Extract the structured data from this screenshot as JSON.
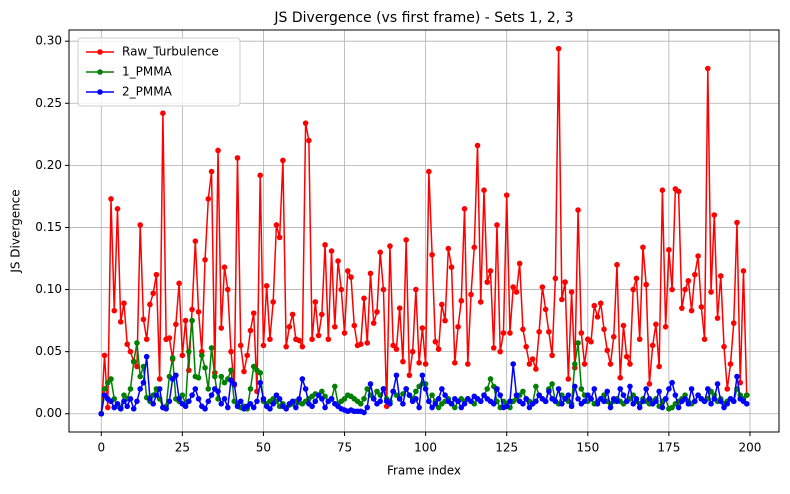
{
  "chart_data": {
    "type": "line",
    "title": "JS Divergence (vs first frame) - Sets 1, 2, 3",
    "x_label": "Frame index",
    "y_label": "JS Divergence",
    "x": [
      0,
      1,
      2,
      3,
      4,
      5,
      6,
      7,
      8,
      9,
      10,
      11,
      12,
      13,
      14,
      15,
      16,
      17,
      18,
      19,
      20,
      21,
      22,
      23,
      24,
      25,
      26,
      27,
      28,
      29,
      30,
      31,
      32,
      33,
      34,
      35,
      36,
      37,
      38,
      39,
      40,
      41,
      42,
      43,
      44,
      45,
      46,
      47,
      48,
      49,
      50,
      51,
      52,
      53,
      54,
      55,
      56,
      57,
      58,
      59,
      60,
      61,
      62,
      63,
      64,
      65,
      66,
      67,
      68,
      69,
      70,
      71,
      72,
      73,
      74,
      75,
      76,
      77,
      78,
      79,
      80,
      81,
      82,
      83,
      84,
      85,
      86,
      87,
      88,
      89,
      90,
      91,
      92,
      93,
      94,
      95,
      96,
      97,
      98,
      99,
      100,
      101,
      102,
      103,
      104,
      105,
      106,
      107,
      108,
      109,
      110,
      111,
      112,
      113,
      114,
      115,
      116,
      117,
      118,
      119,
      120,
      121,
      122,
      123,
      124,
      125,
      126,
      127,
      128,
      129,
      130,
      131,
      132,
      133,
      134,
      135,
      136,
      137,
      138,
      139,
      140,
      141,
      142,
      143,
      144,
      145,
      146,
      147,
      148,
      149,
      150,
      151,
      152,
      153,
      154,
      155,
      156,
      157,
      158,
      159,
      160,
      161,
      162,
      163,
      164,
      165,
      166,
      167,
      168,
      169,
      170,
      171,
      172,
      173,
      174,
      175,
      176,
      177,
      178,
      179,
      180,
      181,
      182,
      183,
      184,
      185,
      186,
      187,
      188,
      189,
      190,
      191,
      192,
      193,
      194,
      195,
      196,
      197,
      198,
      199
    ],
    "series": [
      {
        "name": "Raw_Turbulence",
        "color": "#ff0000",
        "values": [
          0.0,
          0.047,
          0.005,
          0.173,
          0.083,
          0.165,
          0.074,
          0.089,
          0.056,
          0.05,
          0.042,
          0.038,
          0.152,
          0.076,
          0.06,
          0.088,
          0.097,
          0.112,
          0.028,
          0.242,
          0.06,
          0.061,
          0.044,
          0.072,
          0.105,
          0.047,
          0.075,
          0.035,
          0.084,
          0.139,
          0.082,
          0.05,
          0.124,
          0.173,
          0.195,
          0.033,
          0.212,
          0.069,
          0.118,
          0.1,
          0.05,
          0.023,
          0.206,
          0.055,
          0.034,
          0.047,
          0.067,
          0.081,
          0.018,
          0.192,
          0.055,
          0.103,
          0.06,
          0.09,
          0.152,
          0.142,
          0.204,
          0.054,
          0.07,
          0.08,
          0.06,
          0.059,
          0.054,
          0.234,
          0.22,
          0.06,
          0.09,
          0.063,
          0.08,
          0.136,
          0.06,
          0.131,
          0.07,
          0.123,
          0.1,
          0.065,
          0.115,
          0.11,
          0.071,
          0.055,
          0.056,
          0.093,
          0.057,
          0.113,
          0.073,
          0.082,
          0.13,
          0.1,
          0.006,
          0.135,
          0.055,
          0.052,
          0.085,
          0.042,
          0.14,
          0.031,
          0.05,
          0.1,
          0.041,
          0.069,
          0.04,
          0.195,
          0.128,
          0.058,
          0.052,
          0.088,
          0.075,
          0.133,
          0.118,
          0.041,
          0.07,
          0.091,
          0.165,
          0.04,
          0.096,
          0.134,
          0.216,
          0.09,
          0.18,
          0.106,
          0.115,
          0.053,
          0.152,
          0.05,
          0.065,
          0.176,
          0.065,
          0.102,
          0.098,
          0.121,
          0.068,
          0.054,
          0.04,
          0.044,
          0.036,
          0.066,
          0.102,
          0.084,
          0.066,
          0.047,
          0.109,
          0.294,
          0.092,
          0.106,
          0.028,
          0.098,
          0.037,
          0.164,
          0.065,
          0.04,
          0.06,
          0.058,
          0.087,
          0.078,
          0.089,
          0.068,
          0.051,
          0.04,
          0.062,
          0.12,
          0.029,
          0.071,
          0.046,
          0.04,
          0.1,
          0.109,
          0.06,
          0.134,
          0.104,
          0.024,
          0.055,
          0.072,
          0.038,
          0.18,
          0.07,
          0.132,
          0.1,
          0.181,
          0.179,
          0.085,
          0.1,
          0.107,
          0.083,
          0.112,
          0.127,
          0.086,
          0.06,
          0.278,
          0.098,
          0.16,
          0.077,
          0.111,
          0.054,
          0.02,
          0.04,
          0.073,
          0.154,
          0.025,
          0.115,
          0.015
        ]
      },
      {
        "name": "1_PMMA",
        "color": "#008000",
        "values": [
          0.0,
          0.02,
          0.025,
          0.028,
          0.012,
          0.006,
          0.005,
          0.015,
          0.012,
          0.02,
          0.042,
          0.057,
          0.03,
          0.038,
          0.013,
          0.01,
          0.015,
          0.02,
          0.012,
          0.005,
          0.006,
          0.03,
          0.045,
          0.012,
          0.01,
          0.015,
          0.008,
          0.05,
          0.075,
          0.03,
          0.029,
          0.047,
          0.037,
          0.02,
          0.053,
          0.03,
          0.012,
          0.03,
          0.025,
          0.028,
          0.035,
          0.01,
          0.008,
          0.005,
          0.006,
          0.004,
          0.02,
          0.038,
          0.035,
          0.033,
          0.01,
          0.008,
          0.01,
          0.012,
          0.01,
          0.006,
          0.008,
          0.005,
          0.007,
          0.008,
          0.01,
          0.009,
          0.008,
          0.01,
          0.012,
          0.014,
          0.016,
          0.015,
          0.018,
          0.014,
          0.01,
          0.012,
          0.022,
          0.008,
          0.01,
          0.012,
          0.015,
          0.014,
          0.012,
          0.01,
          0.008,
          0.012,
          0.02,
          0.015,
          0.012,
          0.018,
          0.015,
          0.02,
          0.012,
          0.01,
          0.018,
          0.015,
          0.012,
          0.016,
          0.02,
          0.015,
          0.012,
          0.018,
          0.022,
          0.024,
          0.024,
          0.01,
          0.015,
          0.01,
          0.005,
          0.008,
          0.01,
          0.012,
          0.008,
          0.005,
          0.01,
          0.012,
          0.01,
          0.012,
          0.01,
          0.008,
          0.012,
          0.01,
          0.015,
          0.02,
          0.028,
          0.022,
          0.01,
          0.005,
          0.01,
          0.008,
          0.005,
          0.01,
          0.012,
          0.015,
          0.018,
          0.012,
          0.01,
          0.008,
          0.022,
          0.015,
          0.012,
          0.01,
          0.02,
          0.024,
          0.01,
          0.008,
          0.015,
          0.012,
          0.01,
          0.008,
          0.04,
          0.057,
          0.02,
          0.015,
          0.01,
          0.012,
          0.008,
          0.01,
          0.012,
          0.015,
          0.01,
          0.008,
          0.01,
          0.012,
          0.01,
          0.008,
          0.01,
          0.012,
          0.015,
          0.01,
          0.008,
          0.012,
          0.01,
          0.008,
          0.01,
          0.012,
          0.006,
          0.01,
          0.012,
          0.004,
          0.005,
          0.008,
          0.01,
          0.012,
          0.015,
          0.01,
          0.008,
          0.01,
          0.015,
          0.012,
          0.01,
          0.012,
          0.018,
          0.015,
          0.01,
          0.012,
          0.008,
          0.01,
          0.012,
          0.01,
          0.02,
          0.015,
          0.012,
          0.015
        ]
      },
      {
        "name": "2_PMMA",
        "color": "#0000ff",
        "values": [
          0.0,
          0.015,
          0.012,
          0.01,
          0.005,
          0.008,
          0.004,
          0.01,
          0.006,
          0.012,
          0.004,
          0.01,
          0.02,
          0.025,
          0.046,
          0.012,
          0.008,
          0.015,
          0.02,
          0.005,
          0.004,
          0.01,
          0.028,
          0.031,
          0.012,
          0.008,
          0.006,
          0.01,
          0.015,
          0.02,
          0.012,
          0.006,
          0.004,
          0.01,
          0.015,
          0.02,
          0.018,
          0.008,
          0.012,
          0.005,
          0.027,
          0.024,
          0.006,
          0.01,
          0.004,
          0.006,
          0.008,
          0.005,
          0.01,
          0.025,
          0.012,
          0.006,
          0.004,
          0.008,
          0.015,
          0.012,
          0.006,
          0.004,
          0.008,
          0.01,
          0.005,
          0.012,
          0.028,
          0.02,
          0.008,
          0.006,
          0.01,
          0.015,
          0.012,
          0.005,
          0.01,
          0.012,
          0.008,
          0.006,
          0.004,
          0.003,
          0.002,
          0.003,
          0.002,
          0.002,
          0.002,
          0.001,
          0.005,
          0.024,
          0.012,
          0.008,
          0.01,
          0.02,
          0.01,
          0.008,
          0.018,
          0.031,
          0.012,
          0.008,
          0.02,
          0.015,
          0.01,
          0.012,
          0.005,
          0.031,
          0.02,
          0.01,
          0.005,
          0.008,
          0.012,
          0.02,
          0.015,
          0.01,
          0.008,
          0.012,
          0.01,
          0.005,
          0.008,
          0.012,
          0.01,
          0.014,
          0.012,
          0.01,
          0.015,
          0.012,
          0.01,
          0.008,
          0.02,
          0.015,
          0.005,
          0.006,
          0.01,
          0.04,
          0.015,
          0.01,
          0.008,
          0.012,
          0.005,
          0.008,
          0.01,
          0.015,
          0.012,
          0.01,
          0.018,
          0.012,
          0.01,
          0.02,
          0.008,
          0.012,
          0.015,
          0.006,
          0.022,
          0.012,
          0.008,
          0.01,
          0.015,
          0.012,
          0.02,
          0.008,
          0.012,
          0.01,
          0.018,
          0.005,
          0.012,
          0.01,
          0.02,
          0.015,
          0.01,
          0.022,
          0.008,
          0.012,
          0.005,
          0.01,
          0.02,
          0.012,
          0.008,
          0.01,
          0.018,
          0.005,
          0.012,
          0.02,
          0.025,
          0.015,
          0.005,
          0.01,
          0.012,
          0.008,
          0.02,
          0.01,
          0.015,
          0.012,
          0.01,
          0.02,
          0.008,
          0.012,
          0.024,
          0.01,
          0.005,
          0.008,
          0.012,
          0.01,
          0.03,
          0.012,
          0.01,
          0.008
        ]
      }
    ],
    "xlim": [
      -9.95,
      208.95
    ],
    "xticks": [
      0,
      25,
      50,
      75,
      100,
      125,
      150,
      175,
      200
    ],
    "ylim": [
      -0.0147,
      0.309
    ],
    "yticks": [
      {
        "value": 0,
        "label": "0.00"
      },
      0.05,
      {
        "value": 0.1,
        "label": "0.10"
      },
      0.15,
      {
        "value": 0.2,
        "label": "0.20"
      },
      0.25,
      {
        "value": 0.3,
        "label": "0.30"
      }
    ],
    "grid": true,
    "legend": "upper left"
  }
}
